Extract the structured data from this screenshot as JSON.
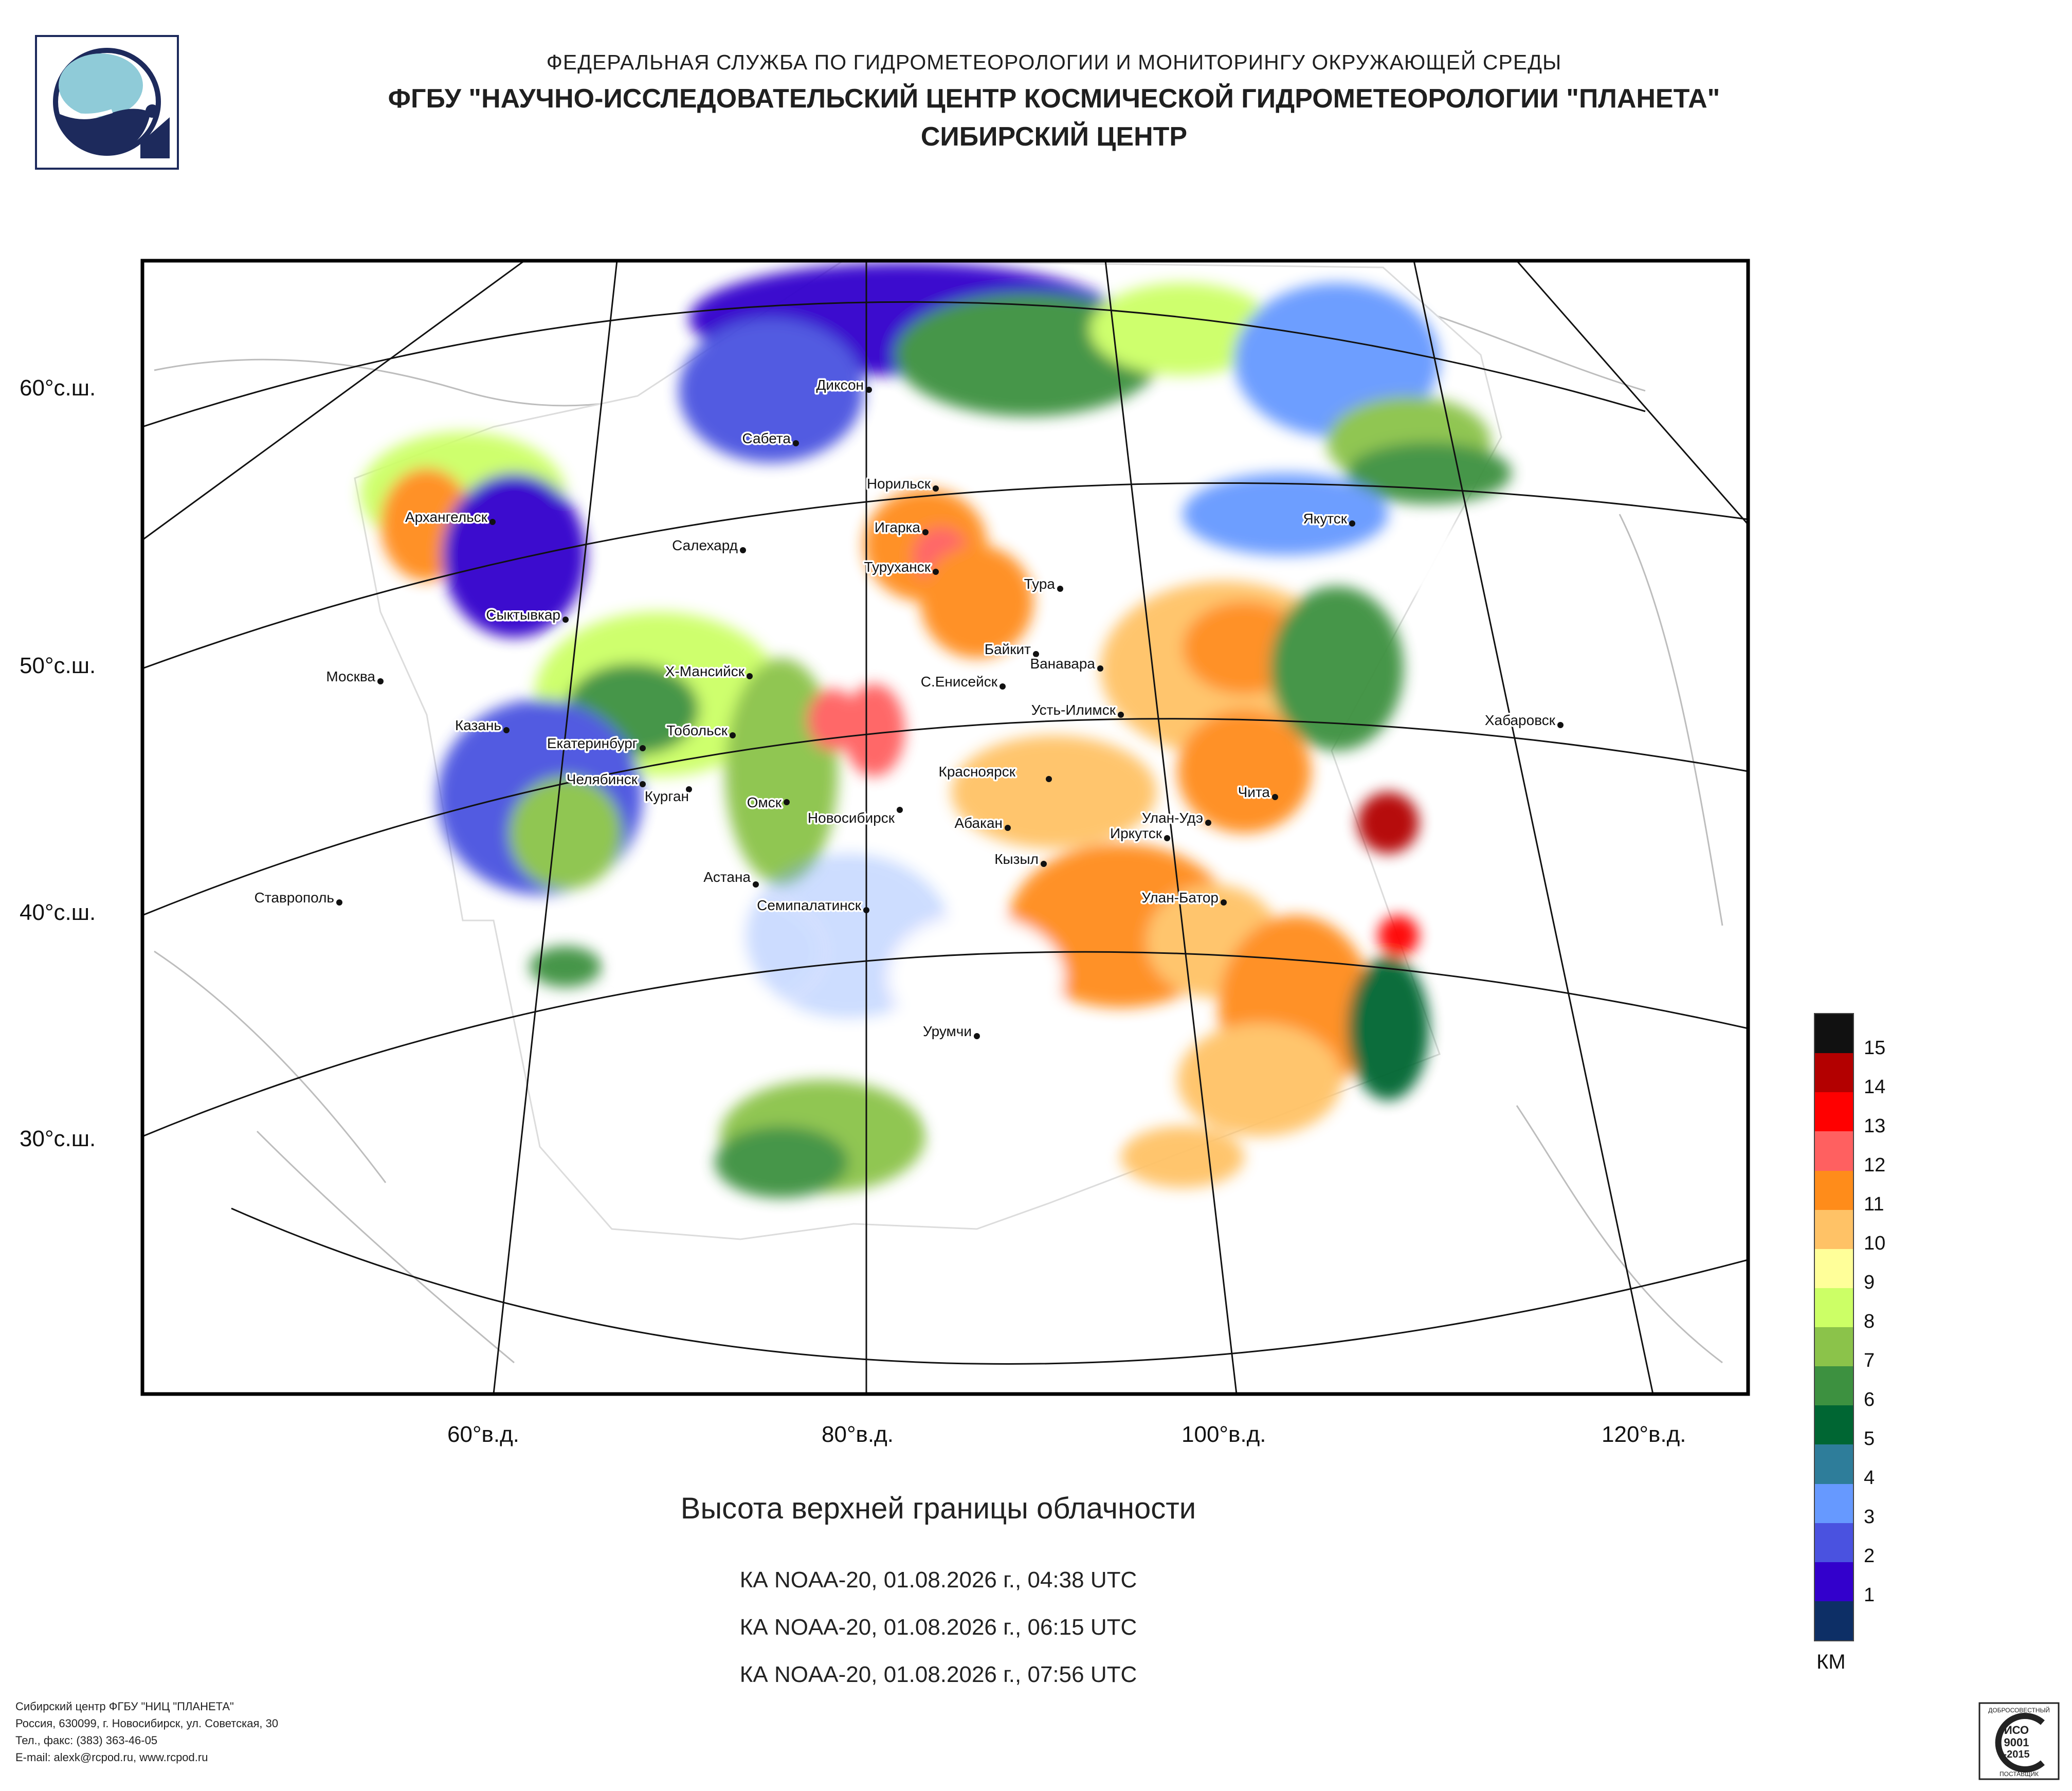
{
  "header": {
    "agency": "ФЕДЕРАЛЬНАЯ СЛУЖБА ПО ГИДРОМЕТЕОРОЛОГИИ И МОНИТОРИНГУ ОКРУЖАЮЩЕЙ СРЕДЫ",
    "institute": "ФГБУ \"НАУЧНО-ИССЛЕДОВАТЕЛЬСКИЙ ЦЕНТР КОСМИЧЕСКОЙ ГИДРОМЕТЕОРОЛОГИИ \"ПЛАНЕТА\"",
    "center": "СИБИРСКИЙ ЦЕНТР"
  },
  "map": {
    "lat_labels": [
      "60°с.ш.",
      "50°с.ш.",
      "40°с.ш.",
      "30°с.ш."
    ],
    "lon_labels": [
      "60°в.д.",
      "80°в.д.",
      "100°в.д.",
      "120°в.д."
    ],
    "cities": [
      "Диксон",
      "Сабета",
      "Норильск",
      "Архангельск",
      "Салехард",
      "Игарка",
      "Туруханск",
      "Тура",
      "Якутск",
      "Сыктывкар",
      "Байкит",
      "Ванавара",
      "Москва",
      "Х-Мансийск",
      "С.Енисейск",
      "Усть-Илимск",
      "Хабаровск",
      "Казань",
      "Тобольск",
      "Екатеринбург",
      "Красноярск",
      "Чита",
      "Челябинск",
      "Курган",
      "Омск",
      "Новосибирск",
      "Абакан",
      "Улан-Удэ",
      "Иркутск",
      "Кызыл",
      "Астана",
      "Ставрополь",
      "Семипалатинск",
      "Улан-Батор",
      "Урумчи"
    ]
  },
  "title": "Высота верхней границы облачности",
  "passes": [
    "КА NOAA-20, 01.08.2026 г., 04:38 UTC",
    "КА NOAA-20, 01.08.2026 г., 06:15 UTC",
    "КА NOAA-20, 01.08.2026 г., 07:56 UTC"
  ],
  "legend": {
    "units": "КМ",
    "labels": [
      "15",
      "14",
      "13",
      "12",
      "11",
      "10",
      "9",
      "8",
      "7",
      "6",
      "5",
      "4",
      "3",
      "2",
      "1"
    ],
    "colors": [
      "#111111",
      "#b30000",
      "#ff0000",
      "#ff6060",
      "#ff8c1a",
      "#ffc266",
      "#ffff99",
      "#ccff66",
      "#8bc34a",
      "#3d9140",
      "#006633",
      "#2e7d9a",
      "#6699ff",
      "#4a52e0",
      "#3300cc",
      "#0d2f66"
    ]
  },
  "footer": {
    "lines": [
      "Сибирский центр ФГБУ \"НИЦ \"ПЛАНЕТА\"",
      "Россия, 630099, г. Новосибирск, ул. Советская, 30",
      "Тел., факс: (383) 363-46-05",
      "E-mail: alexk@rcpod.ru, www.rcpod.ru"
    ]
  },
  "badge": {
    "top": "ДОБРОСОВЕСТНЫЙ",
    "line1": "ИСО",
    "line2": "9001",
    "line3": "-2015",
    "bottom": "ПОСТАВЩИК"
  }
}
